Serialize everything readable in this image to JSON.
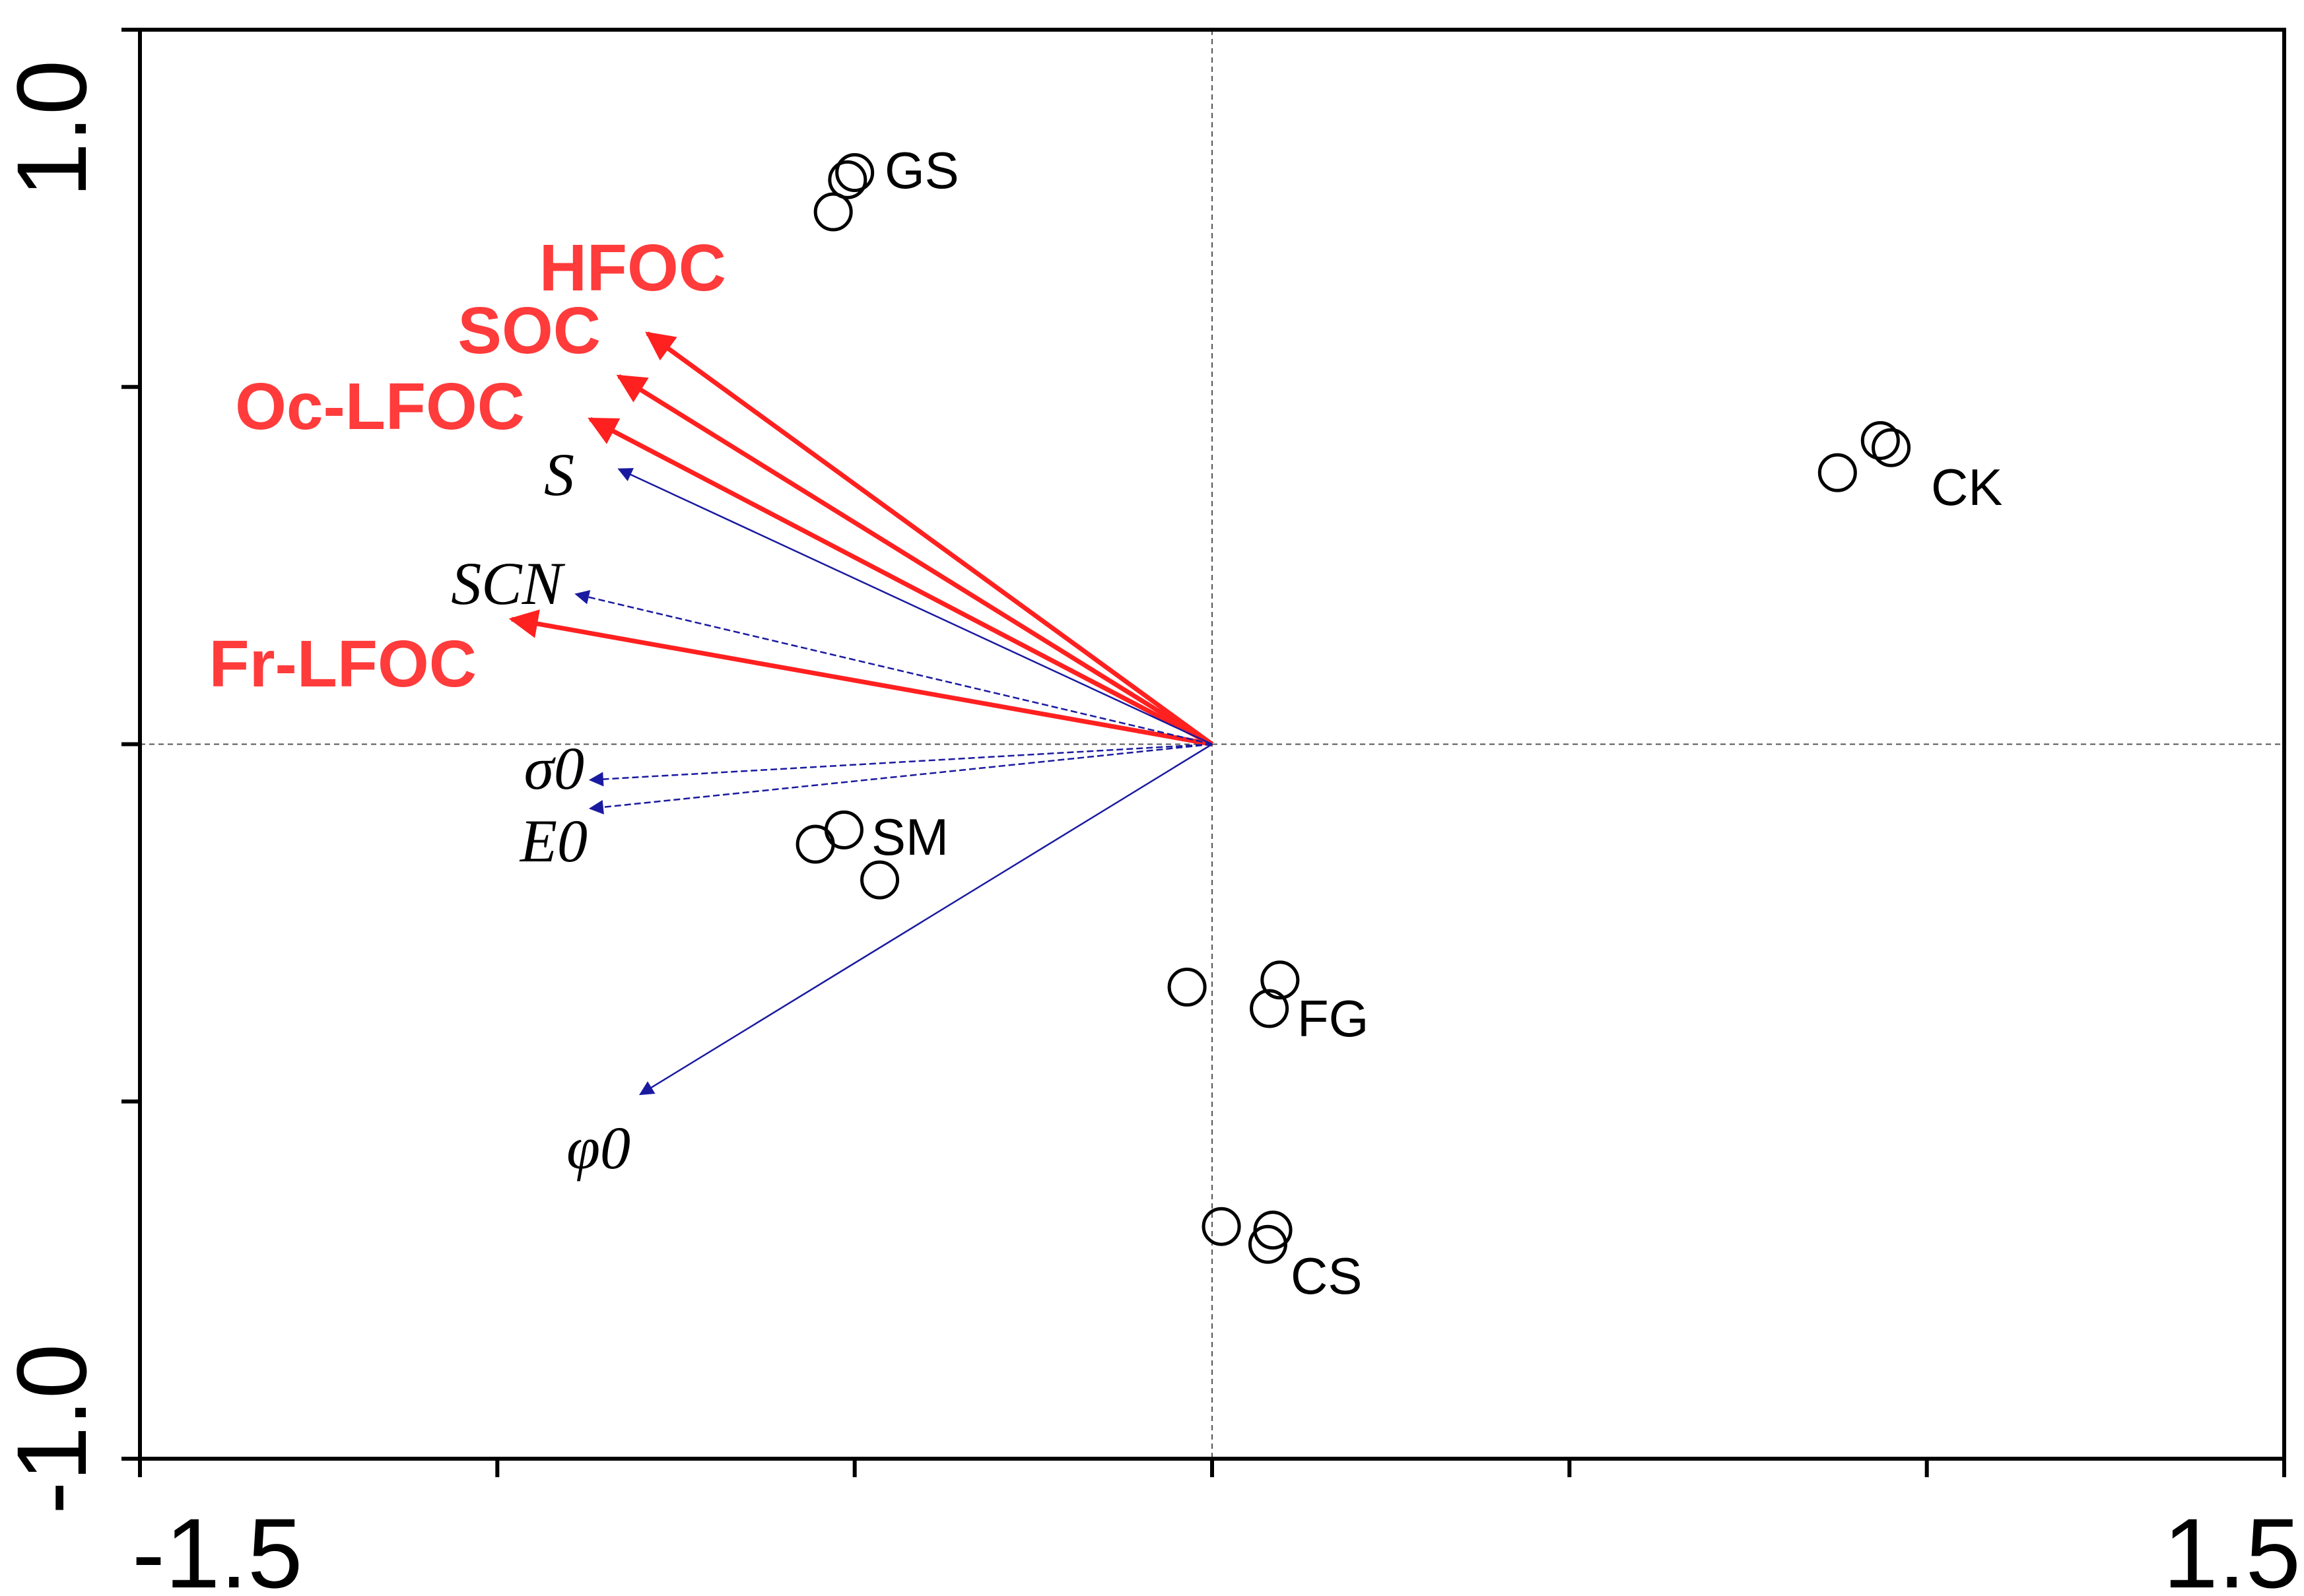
{
  "chart_data": {
    "type": "scatter",
    "title": "",
    "xlabel": "",
    "ylabel": "",
    "xlim": [
      -1.5,
      1.5
    ],
    "ylim": [
      -1.0,
      1.0
    ],
    "x_ticks": [
      -1.5,
      -1.0,
      -0.5,
      0.0,
      0.5,
      1.0,
      1.5
    ],
    "y_ticks": [
      -1.0,
      -0.5,
      0.0,
      0.5,
      1.0
    ],
    "x_tick_labels": [
      {
        "value": -1.5,
        "text": "-1.5"
      },
      {
        "value": 1.5,
        "text": "1.5"
      }
    ],
    "y_tick_labels": [
      {
        "value": 1.0,
        "text": "1.0"
      },
      {
        "value": -1.0,
        "text": "-1.0"
      }
    ],
    "reference_lines": {
      "x": 0,
      "y": 0,
      "style": "dashed"
    },
    "groups": [
      {
        "name": "GS",
        "points": [
          [
            -0.5,
            0.8
          ],
          [
            -0.51,
            0.79
          ],
          [
            -0.53,
            0.745
          ]
        ]
      },
      {
        "name": "CK",
        "points": [
          [
            0.935,
            0.425
          ],
          [
            0.95,
            0.415
          ],
          [
            0.875,
            0.38
          ]
        ]
      },
      {
        "name": "SM",
        "points": [
          [
            -0.515,
            -0.12
          ],
          [
            -0.555,
            -0.14
          ],
          [
            -0.465,
            -0.19
          ]
        ]
      },
      {
        "name": "FG",
        "points": [
          [
            0.095,
            -0.33
          ],
          [
            -0.035,
            -0.34
          ],
          [
            0.08,
            -0.37
          ]
        ]
      },
      {
        "name": "CS",
        "points": [
          [
            0.013,
            -0.675
          ],
          [
            0.085,
            -0.68
          ],
          [
            0.078,
            -0.7
          ]
        ]
      }
    ],
    "arrows": [
      {
        "name": "HFOC",
        "x": -0.79,
        "y": 0.575,
        "color": "#ff2020",
        "style": "solid-bold"
      },
      {
        "name": "SOC",
        "x": -0.83,
        "y": 0.515,
        "color": "#ff2020",
        "style": "solid-bold"
      },
      {
        "name": "Oc-LFOC",
        "x": -0.87,
        "y": 0.455,
        "color": "#ff2020",
        "style": "solid-bold"
      },
      {
        "name": "Fr-LFOC",
        "x": -0.98,
        "y": 0.175,
        "color": "#ff2020",
        "style": "solid-bold"
      },
      {
        "name": "S",
        "x": -0.83,
        "y": 0.385,
        "color": "#1a1aa0",
        "style": "thin"
      },
      {
        "name": "SCN",
        "x": -0.89,
        "y": 0.21,
        "color": "#1a1aa0",
        "style": "dashed"
      },
      {
        "name": "σ0",
        "x": -0.87,
        "y": -0.05,
        "color": "#1a1aa0",
        "style": "dashed"
      },
      {
        "name": "E0",
        "x": -0.87,
        "y": -0.09,
        "color": "#1a1aa0",
        "style": "dashed"
      },
      {
        "name": "φ0",
        "x": -0.8,
        "y": -0.49,
        "color": "#1a1aa0",
        "style": "thin"
      }
    ]
  }
}
